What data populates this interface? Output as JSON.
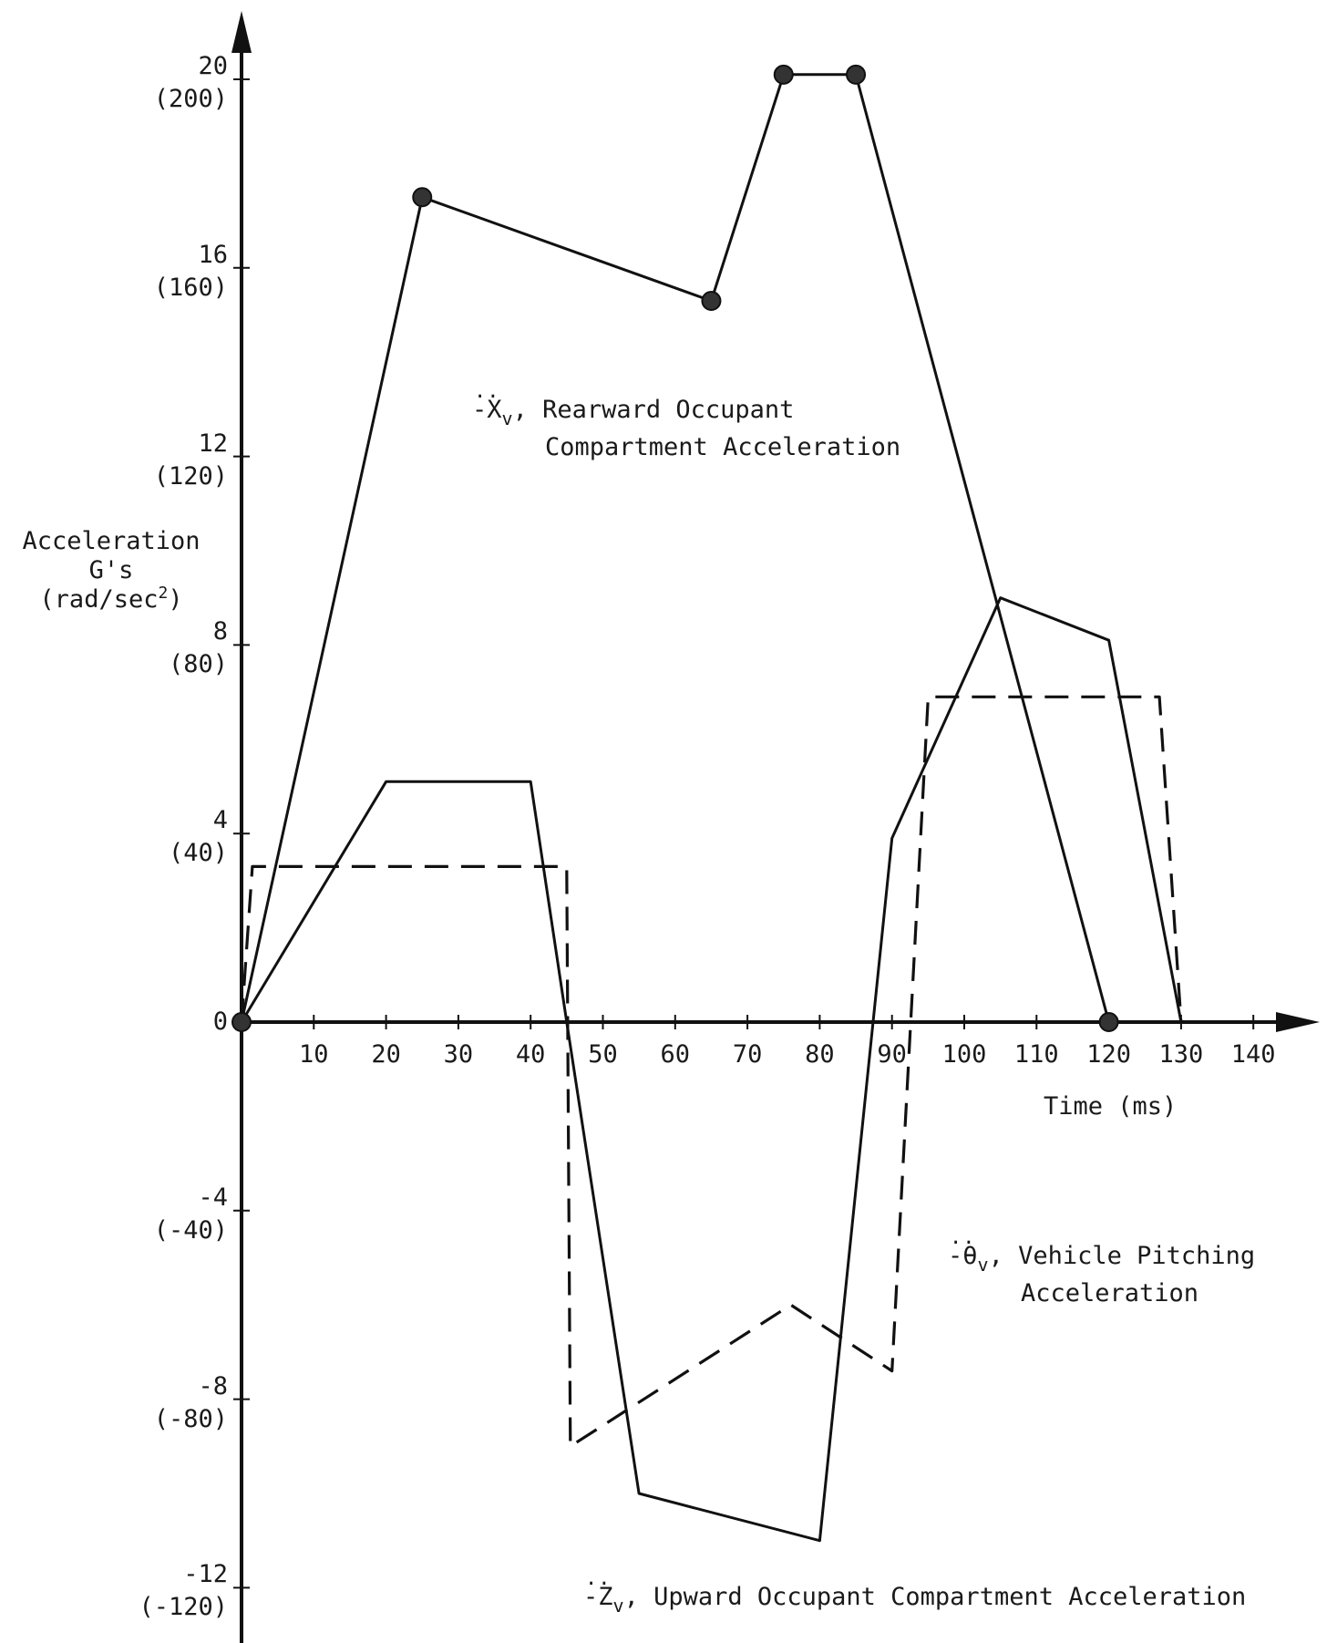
{
  "chart_data": {
    "type": "line",
    "y_axis": {
      "label_lines": [
        "Acceleration",
        "G's",
        "(rad/sec",
        ")"
      ],
      "label_superscript": "2",
      "ticks": [
        {
          "value": 20,
          "label": "20",
          "alt": "(200)"
        },
        {
          "value": 16,
          "label": "16",
          "alt": "(160)"
        },
        {
          "value": 12,
          "label": "12",
          "alt": "(120)"
        },
        {
          "value": 8,
          "label": "8",
          "alt": "(80)"
        },
        {
          "value": 4,
          "label": "4",
          "alt": "(40)"
        },
        {
          "value": 0,
          "label": "0",
          "alt": ""
        },
        {
          "value": -4,
          "label": "-4",
          "alt": "(-40)"
        },
        {
          "value": -8,
          "label": "-8",
          "alt": "(-80)"
        },
        {
          "value": -12,
          "label": "-12",
          "alt": "(-120)"
        }
      ],
      "range": [
        -13,
        22
      ]
    },
    "x_axis": {
      "label": "Time (ms)",
      "ticks": [
        10,
        20,
        30,
        40,
        50,
        60,
        70,
        80,
        90,
        100,
        110,
        120,
        130,
        140
      ],
      "range": [
        0,
        148
      ]
    },
    "series": [
      {
        "name": "Rearward Occupant Compartment Acceleration",
        "symbol": "-X",
        "subscript": "v",
        "style": "solid",
        "x": [
          0,
          25,
          65,
          75,
          85,
          120
        ],
        "y": [
          0,
          17.5,
          15.3,
          20.1,
          20.1,
          0
        ]
      },
      {
        "name": "Vehicle Pitching Acceleration",
        "symbol": "-θ",
        "subscript": "v",
        "style": "dashed",
        "x": [
          0,
          1.5,
          45,
          45.5,
          76,
          90,
          95,
          127,
          130
        ],
        "y": [
          0,
          3.3,
          3.3,
          -9,
          -6,
          -7.4,
          6.9,
          6.9,
          0
        ]
      },
      {
        "name": "Upward Occupant Compartment Acceleration",
        "symbol": "-Z",
        "subscript": "v",
        "style": "solid",
        "x": [
          0,
          20,
          40,
          45,
          55,
          80,
          90,
          105,
          120,
          130
        ],
        "y": [
          0,
          5.1,
          5.1,
          0,
          -10,
          -11,
          3.9,
          9,
          8.1,
          0
        ]
      }
    ],
    "markers": [
      {
        "x": 0,
        "y": 0
      },
      {
        "x": 25,
        "y": 17.5
      },
      {
        "x": 65,
        "y": 15.3
      },
      {
        "x": 75,
        "y": 20.1
      },
      {
        "x": 85,
        "y": 20.1
      },
      {
        "x": 120,
        "y": 0
      }
    ],
    "grid": false,
    "legend": "none"
  }
}
